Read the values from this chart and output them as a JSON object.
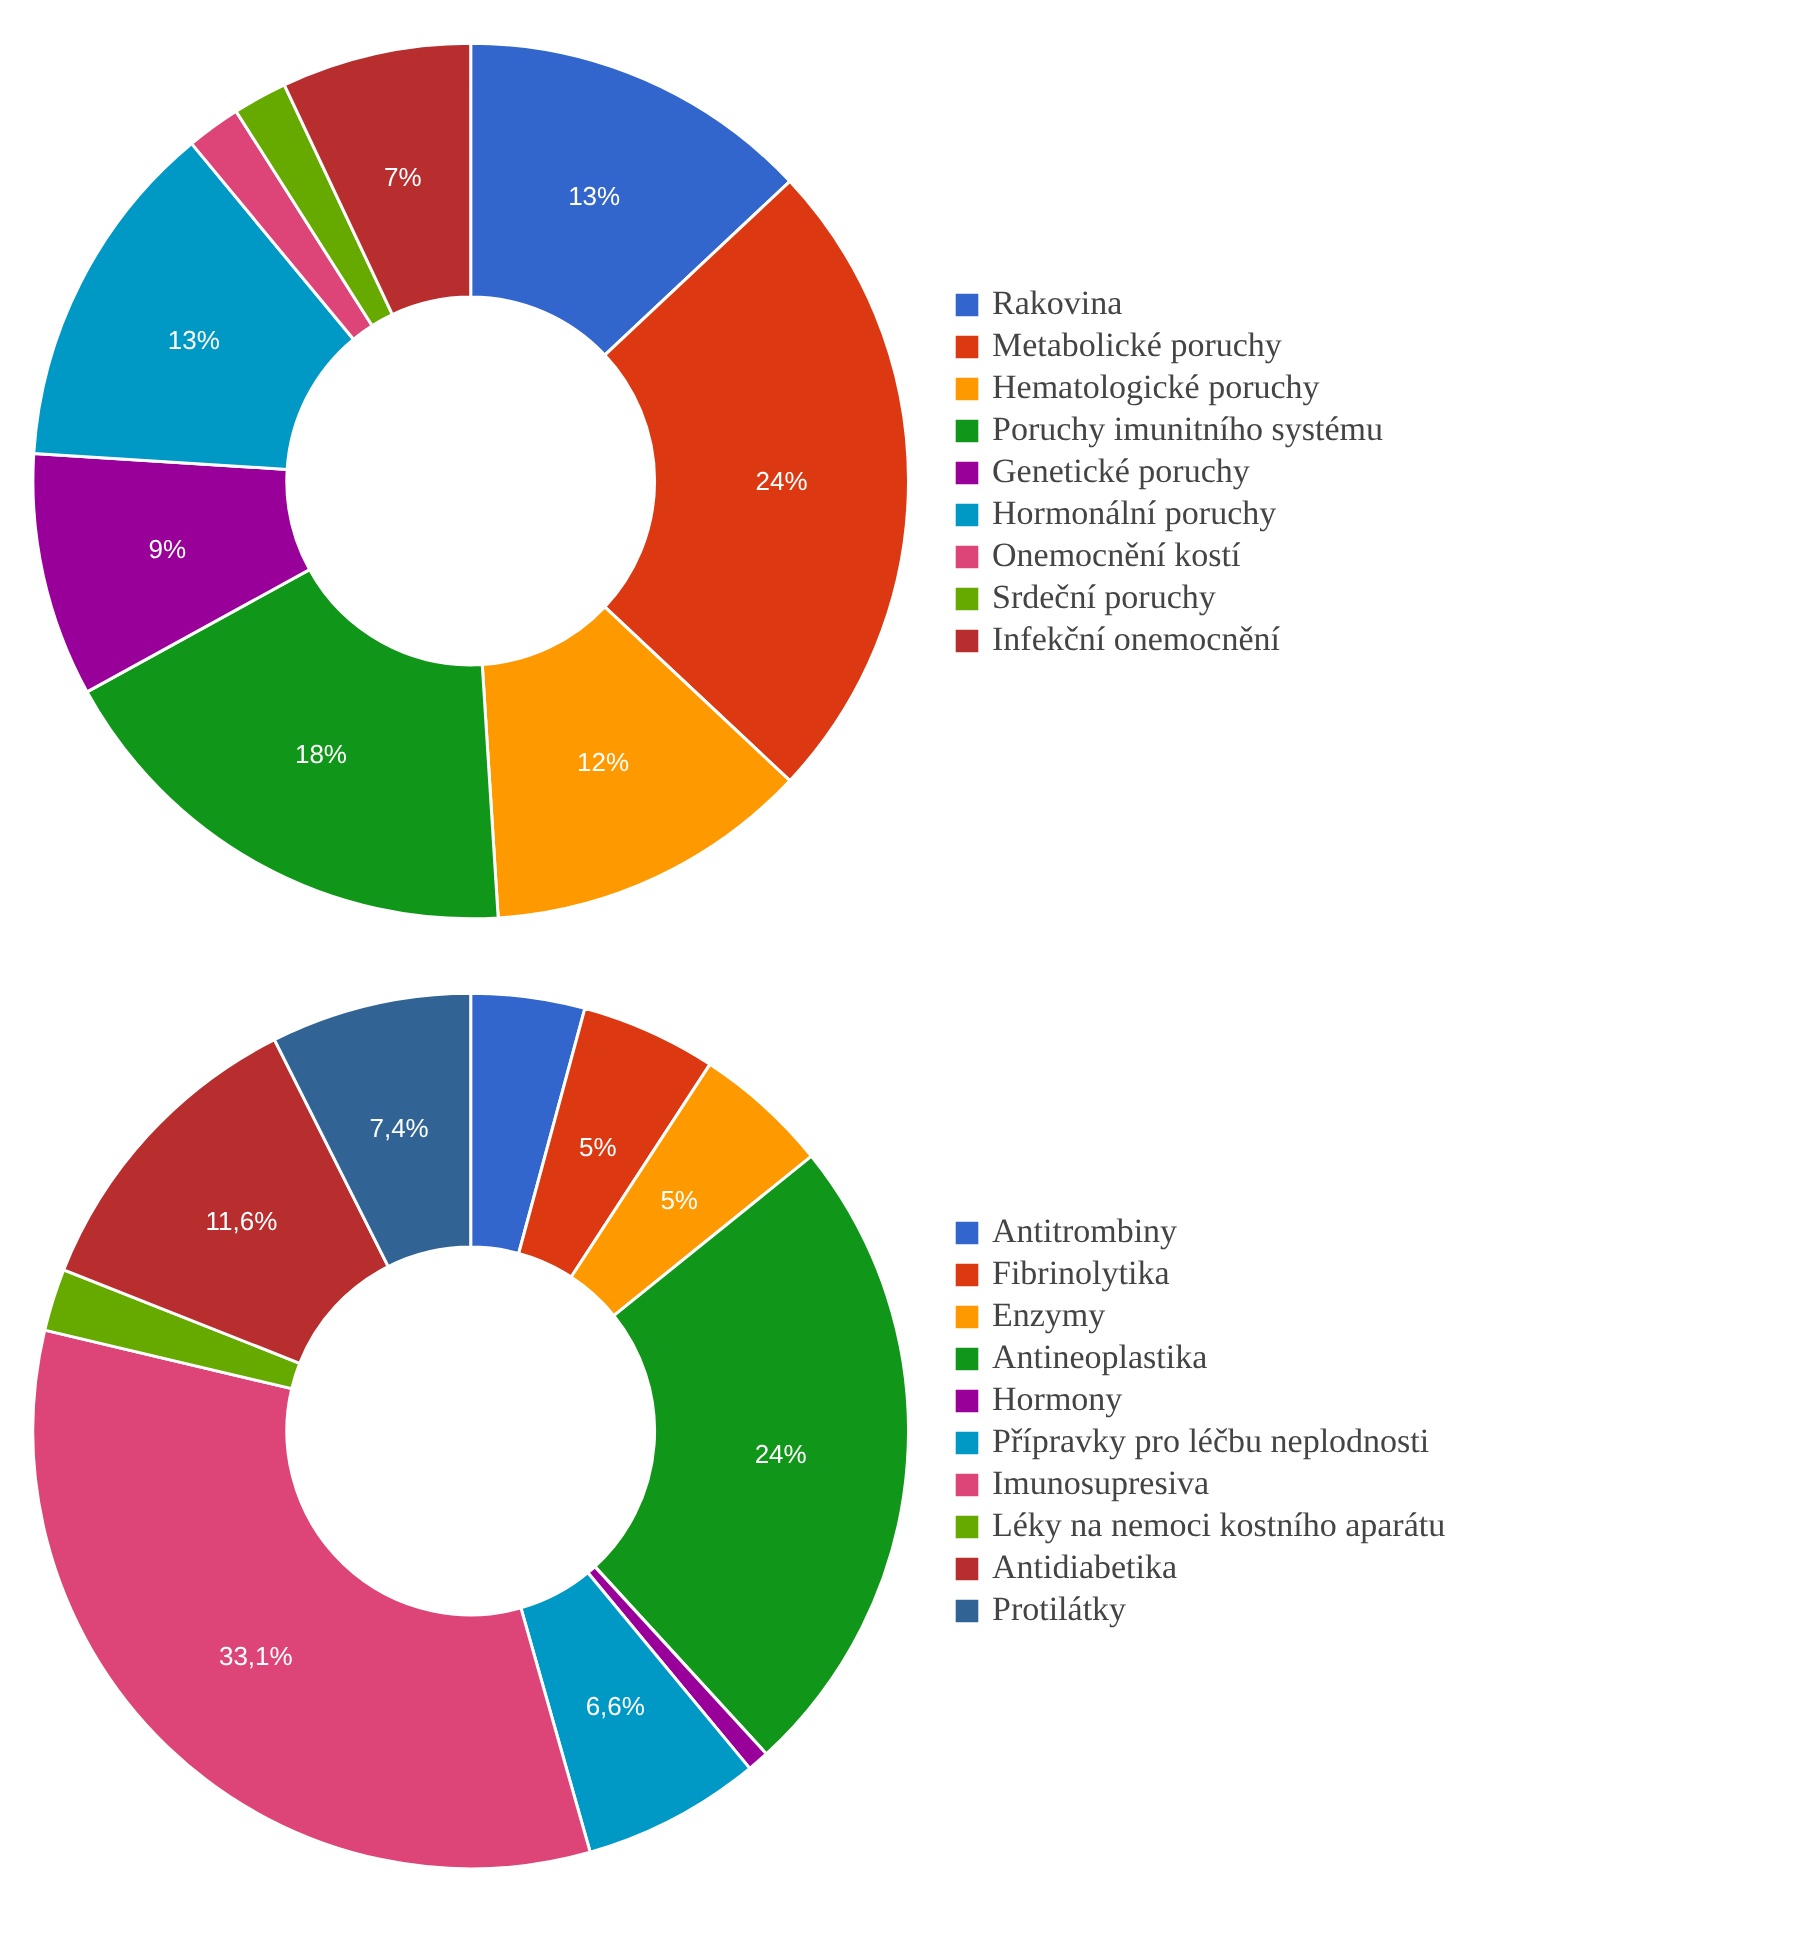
{
  "chart_data": [
    {
      "type": "donut",
      "categories": [
        "Rakovina",
        "Metabolické poruchy",
        "Hematologické poruchy",
        "Poruchy imunitního systému",
        "Genetické poruchy",
        "Hormonální poruchy",
        "Onemocnění kostí",
        "Srdeční poruchy",
        "Infekční onemocnění"
      ],
      "values": [
        13,
        24,
        12,
        18,
        9,
        13,
        2,
        2,
        7
      ],
      "value_labels": [
        "13%",
        "24%",
        "12%",
        "18%",
        "9%",
        "13%",
        null,
        null,
        "7%"
      ],
      "colors": [
        "#3366cc",
        "#dc3912",
        "#ff9900",
        "#109618",
        "#990099",
        "#0099c6",
        "#dd4477",
        "#66aa00",
        "#b82e2e"
      ],
      "legend": "right"
    },
    {
      "type": "donut",
      "categories": [
        "Antitrombiny",
        "Fibrinolytika",
        "Enzymy",
        "Antineoplastika",
        "Hormony",
        "Přípravky pro léčbu neplodnosti",
        "Imunosupresiva",
        "Léky na nemoci kostního aparátu",
        "Antidiabetika",
        "Protilátky"
      ],
      "values": [
        4.2,
        5,
        5,
        24,
        0.8,
        6.6,
        33.1,
        2.3,
        11.6,
        7.4
      ],
      "value_labels": [
        null,
        "5%",
        "5%",
        "24%",
        null,
        "6,6%",
        "33,1%",
        null,
        "11,6%",
        "7,4%"
      ],
      "colors": [
        "#3366cc",
        "#dc3912",
        "#ff9900",
        "#109618",
        "#990099",
        "#0099c6",
        "#dd4477",
        "#66aa00",
        "#b82e2e",
        "#316395"
      ],
      "legend": "right"
    }
  ]
}
